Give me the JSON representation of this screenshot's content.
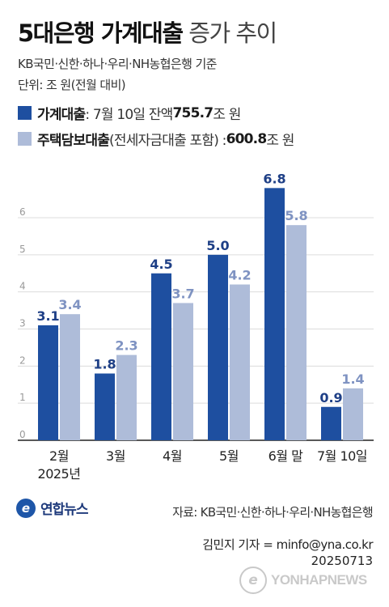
{
  "header": {
    "title_bold": "5대은행 가계대출",
    "title_light": "증가 추이",
    "subtitle_banks": "KB국민·신한·하나·우리·NH농협은행 기준",
    "subtitle_unit": "단위: 조 원(전월 대비)"
  },
  "legend": [
    {
      "name": "가계대출",
      "note_prefix": ": 7월 10일 잔액 ",
      "amount": "755.7",
      "unit": "조 원",
      "color": "#1e4fa0"
    },
    {
      "name": "주택담보대출",
      "note_prefix": "(전세자금대출 포함) : ",
      "amount": "600.8",
      "unit": "조 원",
      "color": "#aebcd9"
    }
  ],
  "chart_data": {
    "type": "bar",
    "categories": [
      "2월",
      "3월",
      "4월",
      "5월",
      "6월 말",
      "7월 10일"
    ],
    "category_sublabels": [
      "2025년",
      "",
      "",
      "",
      "",
      ""
    ],
    "series": [
      {
        "name": "가계대출",
        "values": [
          3.1,
          1.8,
          4.5,
          5.0,
          6.8,
          0.9
        ],
        "color": "#1e4fa0"
      },
      {
        "name": "주택담보대출",
        "values": [
          3.4,
          2.3,
          3.7,
          4.2,
          5.8,
          1.4
        ],
        "color": "#aebcd9"
      }
    ],
    "yticks": [
      "0",
      "1",
      "2",
      "3",
      "4",
      "5",
      "6"
    ],
    "ylim": [
      0,
      7.2
    ],
    "grid": true
  },
  "footer": {
    "logo_text": "연합뉴스",
    "source": "자료: KB국민·신한·하나·우리·NH농협은행",
    "credit": "김민지 기자 = minfo@yna.co.kr",
    "date": "20250713",
    "watermark": "YONHAPNEWS"
  }
}
